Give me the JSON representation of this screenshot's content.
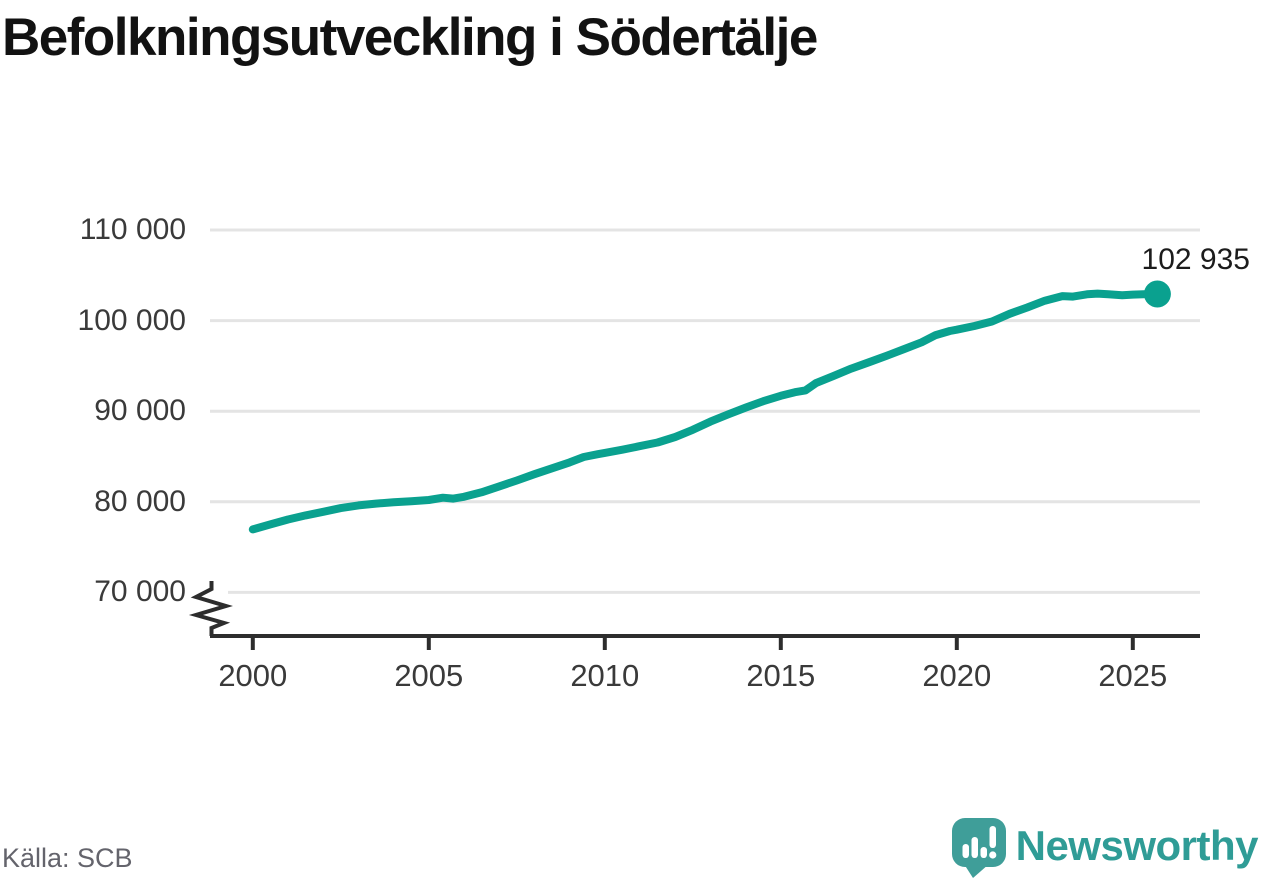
{
  "title": "Befolkningsutveckling i Södertälje",
  "source": "Källa: SCB",
  "brand": {
    "name": "Newsworthy",
    "icon": "newsworthy-speech-bubble-bar-chart-icon",
    "wordmark_color": "#2f9c96",
    "icon_color": "#3f9e99"
  },
  "chart_data": {
    "type": "line",
    "title": "Befolkningsutveckling i Södertälje",
    "xlabel": "",
    "ylabel": "",
    "x": [
      2000,
      2000.5,
      2001,
      2001.5,
      2002,
      2002.5,
      2003,
      2003.5,
      2004,
      2004.5,
      2005,
      2005.4,
      2005.7,
      2006,
      2006.5,
      2007,
      2007.5,
      2008,
      2008.5,
      2009,
      2009.4,
      2009.8,
      2010,
      2010.5,
      2011,
      2011.5,
      2012,
      2012.5,
      2013,
      2013.5,
      2014,
      2014.5,
      2015,
      2015.4,
      2015.7,
      2016,
      2016.5,
      2017,
      2017.5,
      2018,
      2018.5,
      2019,
      2019.4,
      2019.8,
      2020,
      2020.5,
      2021,
      2021.5,
      2022,
      2022.5,
      2023,
      2023.3,
      2023.7,
      2024,
      2024.3,
      2024.7,
      2025,
      2025.3,
      2025.7
    ],
    "y": [
      76950,
      77500,
      78050,
      78500,
      78900,
      79300,
      79600,
      79800,
      79950,
      80050,
      80200,
      80450,
      80350,
      80550,
      81050,
      81700,
      82350,
      83050,
      83700,
      84350,
      84950,
      85250,
      85400,
      85750,
      86150,
      86550,
      87150,
      87950,
      88850,
      89650,
      90400,
      91100,
      91700,
      92100,
      92300,
      93100,
      93900,
      94700,
      95400,
      96100,
      96850,
      97600,
      98400,
      98850,
      99000,
      99400,
      99900,
      100750,
      101450,
      102200,
      102700,
      102650,
      102900,
      102980,
      102900,
      102800,
      102870,
      102900,
      102935
    ],
    "series_name": "Befolkning",
    "line_color": "#0aa18f",
    "end_value": 102935,
    "end_label": "102 935",
    "yticks": [
      110000,
      100000,
      90000,
      80000,
      70000
    ],
    "ytick_labels": [
      "110 000",
      "100 000",
      "90 000",
      "80 000",
      "70 000"
    ],
    "xticks": [
      2000,
      2005,
      2010,
      2015,
      2020,
      2025
    ],
    "xtick_labels": [
      "2000",
      "2005",
      "2010",
      "2015",
      "2020",
      "2025"
    ],
    "ylim": [
      70000,
      110000
    ],
    "xlim": [
      2000,
      2027
    ],
    "axis_break": true,
    "grid": "horizontal",
    "legend": "none"
  }
}
